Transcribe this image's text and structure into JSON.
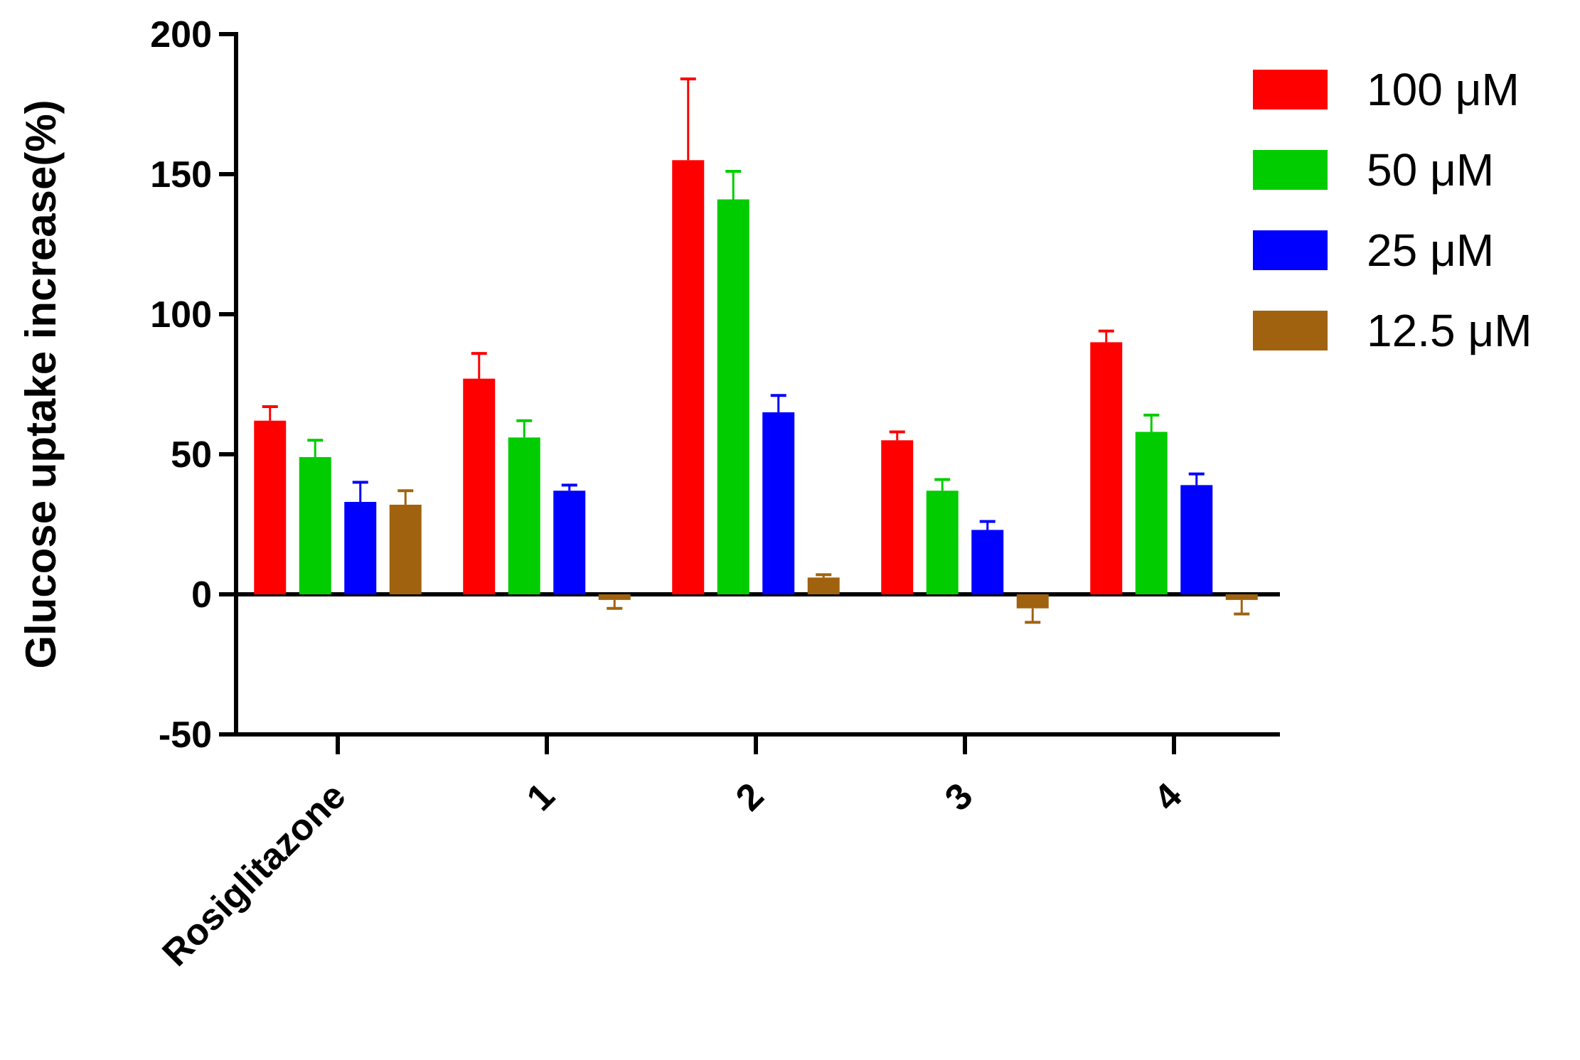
{
  "chart_data": {
    "type": "bar",
    "title": "",
    "xlabel": "",
    "ylabel": "Glucose uptake increase(%)",
    "ylim": [
      -50,
      200
    ],
    "yticks": [
      -50,
      0,
      50,
      100,
      150,
      200
    ],
    "grid": false,
    "legend_position": "top-right",
    "categories": [
      "Rosiglitazone",
      "1",
      "2",
      "3",
      "4"
    ],
    "series": [
      {
        "name": "100 μM",
        "color": "#ff0000",
        "values": [
          62,
          77,
          155,
          55,
          90
        ],
        "errors": [
          5,
          9,
          29,
          3,
          4
        ]
      },
      {
        "name": "50 μM",
        "color": "#00cc00",
        "values": [
          49,
          56,
          141,
          37,
          58
        ],
        "errors": [
          6,
          6,
          10,
          4,
          6
        ]
      },
      {
        "name": "25 μM",
        "color": "#0000ff",
        "values": [
          33,
          37,
          65,
          23,
          39
        ],
        "errors": [
          7,
          2,
          6,
          3,
          4
        ]
      },
      {
        "name": "12.5 μM",
        "color": "#a0620f",
        "values": [
          32,
          -2,
          6,
          -5,
          -2
        ],
        "errors": [
          5,
          3,
          1,
          5,
          5
        ]
      }
    ]
  }
}
